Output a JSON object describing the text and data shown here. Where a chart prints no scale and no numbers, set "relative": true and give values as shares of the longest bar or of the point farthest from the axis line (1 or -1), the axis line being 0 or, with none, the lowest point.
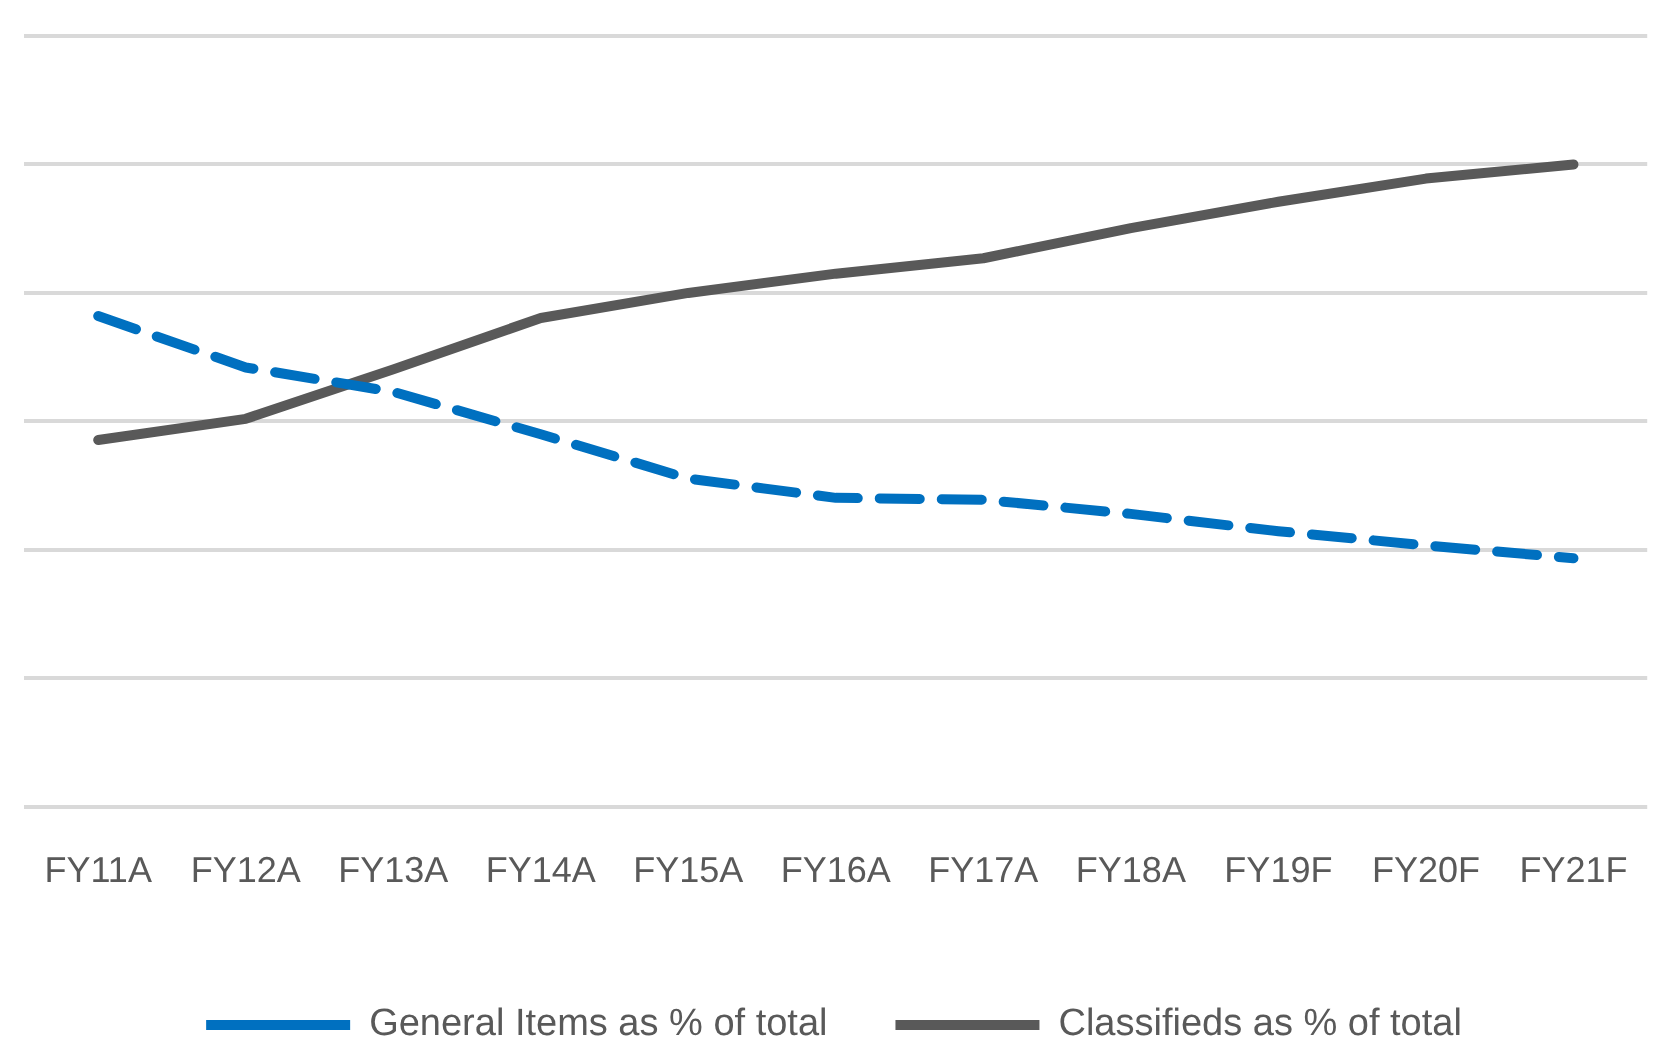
{
  "chart_data": {
    "type": "line",
    "relative": true,
    "grid": "y",
    "legend": "bottom",
    "marker": "none",
    "categories": [
      "FY11A",
      "FY12A",
      "FY13A",
      "FY14A",
      "FY15A",
      "FY16A",
      "FY17A",
      "FY18A",
      "FY19F",
      "FY20F",
      "FY21F"
    ],
    "series": [
      {
        "name": "General Items as % of total",
        "color": "#0070c0",
        "line_style": "dashed",
        "values": [
          0.764,
          0.684,
          0.646,
          0.58,
          0.511,
          0.481,
          0.478,
          0.456,
          0.429,
          0.407,
          0.387
        ]
      },
      {
        "name": "Classifieds as % of total",
        "color": "#595959",
        "line_style": "solid",
        "values": [
          0.571,
          0.604,
          0.681,
          0.761,
          0.8,
          0.83,
          0.854,
          0.901,
          0.942,
          0.978,
          1
        ]
      }
    ]
  }
}
